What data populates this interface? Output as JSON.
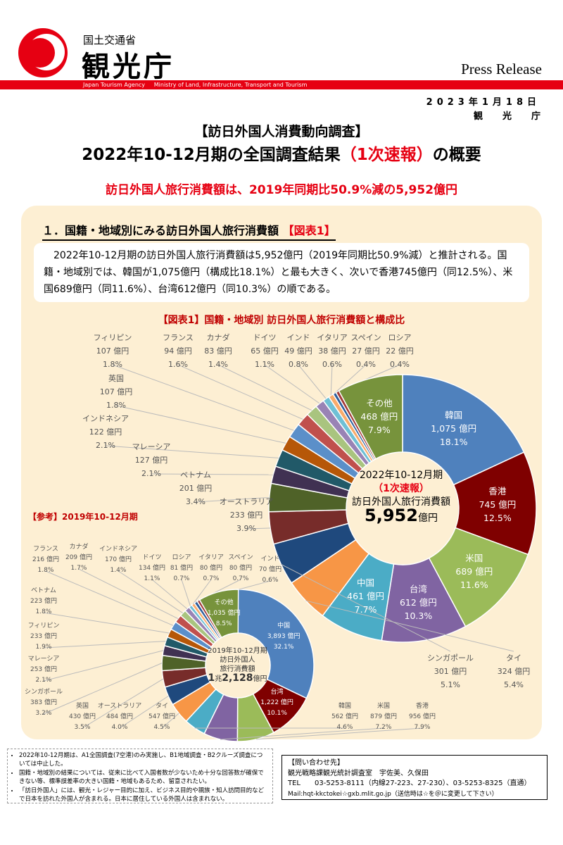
{
  "header": {
    "ministry": "国土交通省",
    "agency": "観光庁",
    "press_release": "Press Release",
    "bar_text": "Japan Tourism Agency     Ministry of Land, Infrastructure, Transport and Tourism",
    "date": "2023年1月18日",
    "issuer": "観光庁"
  },
  "title": {
    "line1": "【訪日外国人消費動向調査】",
    "line2a": "2022年10-12月期の全国調査結果",
    "line2b": "（1次速報）",
    "line2c": "の概要",
    "subtitle": "訪日外国人旅行消費額は、2019年同期比50.9%減の5,952億円"
  },
  "section": {
    "heading": "１．国籍・地域別にみる訪日外国人旅行消費額",
    "heading_tag": "【図表1】",
    "body": "2022年10-12月期の訪日外国人旅行消費額は5,952億円（2019年同期比50.9%減）と推計される。国籍・地域別では、韓国が1,075億円（構成比18.1%）と最も大きく、次いで香港745億円（同12.5%）、米国689億円（同11.6%）、台湾612億円（同10.3%）の順である。"
  },
  "chart_data": [
    {
      "type": "pie",
      "title": "【図表1】国籍・地域別 訪日外国人旅行消費額と構成比",
      "center": {
        "l1": "2022年10-12月期",
        "l2": "（1次速報）",
        "l3": "訪日外国人旅行消費額",
        "total": "5,952",
        "unit": "億円"
      },
      "slices": [
        {
          "name": "韓国",
          "value": "1,075 億円",
          "pct": 18.1,
          "color": "#4f81bd"
        },
        {
          "name": "香港",
          "value": "745 億円",
          "pct": 12.5,
          "color": "#7f0000"
        },
        {
          "name": "米国",
          "value": "689 億円",
          "pct": 11.6,
          "color": "#9bbb59"
        },
        {
          "name": "台湾",
          "value": "612 億円",
          "pct": 10.3,
          "color": "#8064a2"
        },
        {
          "name": "中国",
          "value": "461 億円",
          "pct": 7.7,
          "color": "#4bacc6"
        },
        {
          "name": "タイ",
          "value": "324 億円",
          "pct": 5.4,
          "color": "#f79646"
        },
        {
          "name": "シンガポール",
          "value": "301 億円",
          "pct": 5.1,
          "color": "#1f497d"
        },
        {
          "name": "オーストラリア",
          "value": "233 億円",
          "pct": 3.9,
          "color": "#772c2a"
        },
        {
          "name": "ベトナム",
          "value": "201 億円",
          "pct": 3.4,
          "color": "#4f6228"
        },
        {
          "name": "マレーシア",
          "value": "127 億円",
          "pct": 2.1,
          "color": "#403152"
        },
        {
          "name": "インドネシア",
          "value": "122 億円",
          "pct": 2.1,
          "color": "#215968"
        },
        {
          "name": "英国",
          "value": "107 億円",
          "pct": 1.8,
          "color": "#b65708"
        },
        {
          "name": "フィリピン",
          "value": "107 億円",
          "pct": 1.8,
          "color": "#5b8fc9"
        },
        {
          "name": "フランス",
          "value": "94 億円",
          "pct": 1.6,
          "color": "#c0504d"
        },
        {
          "name": "カナダ",
          "value": "83 億円",
          "pct": 1.4,
          "color": "#a9c47f"
        },
        {
          "name": "ドイツ",
          "value": "65 億円",
          "pct": 1.1,
          "color": "#9983b5"
        },
        {
          "name": "インド",
          "value": "49 億円",
          "pct": 0.8,
          "color": "#6fc0d5"
        },
        {
          "name": "イタリア",
          "value": "38 億円",
          "pct": 0.6,
          "color": "#f9ab6b"
        },
        {
          "name": "スペイン",
          "value": "27 億円",
          "pct": 0.4,
          "color": "#2c5d9b"
        },
        {
          "name": "ロシア",
          "value": "22 億円",
          "pct": 0.4,
          "color": "#a33a37"
        },
        {
          "name": "その他",
          "value": "468 億円",
          "pct": 7.9,
          "color": "#77933c"
        }
      ]
    },
    {
      "type": "pie",
      "title": "【参考】2019年10-12月期",
      "center": {
        "l1": "2019年10-12月期",
        "l2": "訪日外国人",
        "l3": "旅行消費額",
        "total_a": "1",
        "total_b": "兆",
        "total_c": "2,128",
        "unit": "億円"
      },
      "slices": [
        {
          "name": "中国",
          "value": "3,893 億円",
          "pct": 32.1,
          "color": "#4f81bd"
        },
        {
          "name": "台湾",
          "value": "1,222 億円",
          "pct": 10.1,
          "color": "#7f0000"
        },
        {
          "name": "香港",
          "value": "956 億円",
          "pct": 7.9,
          "color": "#9bbb59"
        },
        {
          "name": "米国",
          "value": "879 億円",
          "pct": 7.2,
          "color": "#8064a2"
        },
        {
          "name": "韓国",
          "value": "562 億円",
          "pct": 4.6,
          "color": "#4bacc6"
        },
        {
          "name": "タイ",
          "value": "547 億円",
          "pct": 4.5,
          "color": "#f79646"
        },
        {
          "name": "オーストラリア",
          "value": "484 億円",
          "pct": 4.0,
          "color": "#1f497d"
        },
        {
          "name": "英国",
          "value": "430 億円",
          "pct": 3.5,
          "color": "#772c2a"
        },
        {
          "name": "シンガポール",
          "value": "383 億円",
          "pct": 3.2,
          "color": "#4f6228"
        },
        {
          "name": "マレーシア",
          "value": "253 億円",
          "pct": 2.1,
          "color": "#403152"
        },
        {
          "name": "フィリピン",
          "value": "233 億円",
          "pct": 1.9,
          "color": "#215968"
        },
        {
          "name": "ベトナム",
          "value": "223 億円",
          "pct": 1.8,
          "color": "#b65708"
        },
        {
          "name": "フランス",
          "value": "216 億円",
          "pct": 1.8,
          "color": "#5b8fc9"
        },
        {
          "name": "カナダ",
          "value": "209 億円",
          "pct": 1.7,
          "color": "#c0504d"
        },
        {
          "name": "インドネシア",
          "value": "170 億円",
          "pct": 1.4,
          "color": "#a9c47f"
        },
        {
          "name": "ドイツ",
          "value": "134 億円",
          "pct": 1.1,
          "color": "#9983b5"
        },
        {
          "name": "ロシア",
          "value": "81 億円",
          "pct": 0.7,
          "color": "#6fc0d5"
        },
        {
          "name": "イタリア",
          "value": "80 億円",
          "pct": 0.7,
          "color": "#f9ab6b"
        },
        {
          "name": "スペイン",
          "value": "80 億円",
          "pct": 0.7,
          "color": "#2c5d9b"
        },
        {
          "name": "インド",
          "value": "70 億円",
          "pct": 0.6,
          "color": "#a33a37"
        },
        {
          "name": "その他",
          "value": "1,035 億円",
          "pct": 8.5,
          "color": "#77933c"
        }
      ]
    }
  ],
  "notes": [
    "2022年10-12月期は、A1全国調査(7空港)のみ実施し、B1地域調査・B2クルーズ調査については中止した。",
    "国籍・地域別の結果については、従来に比べて入国者数が少ないため十分な回答数が確保できない等、標準誤差率の大きい国籍・地域もあるため、留意されたい。",
    "「訪日外国人」には、観光・レジャー目的に加え、ビジネス目的や親族・知人訪問目的などで日本を訪れた外国人が含まれる。日本に居住している外国人は含まれない。"
  ],
  "contact": {
    "heading": "【問い合わせ先】",
    "dept": "観光戦略課観光統計調査室　宇佐美、久保田",
    "tel": "TEL　　03-5253-8111（内線27-223、27-230）、03-5253-8325（直通）",
    "mail": "Mail:hqt-kkctokei☆gxb.mlit.go.jp（送信時は☆を＠に変更して下さい）"
  }
}
